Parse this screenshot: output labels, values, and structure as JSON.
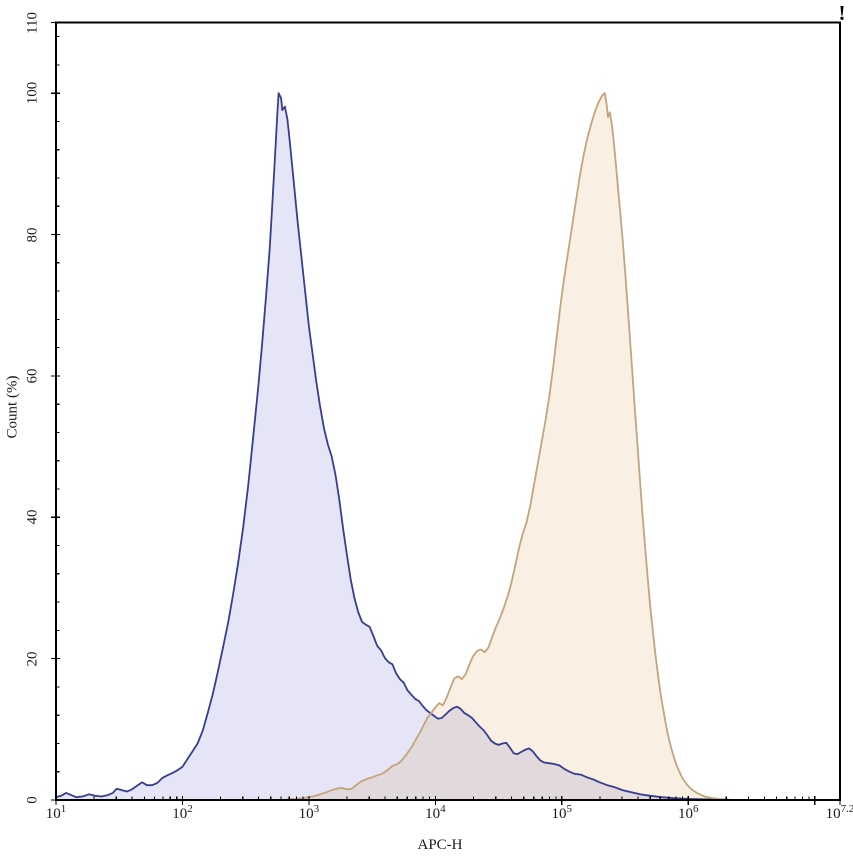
{
  "panel": {
    "background_color": "#ffffff",
    "frame_color": "#000000",
    "text_color": "#1a1a1a",
    "warning_glyph": "!"
  },
  "chart_data": {
    "type": "area",
    "subtype": "flow-cytometry-overlay-histogram",
    "title": "",
    "xlabel": "APC-H",
    "ylabel": "Count (%)",
    "grid": false,
    "legend": "none",
    "x_axis": {
      "scale": "log10",
      "range_log": [
        1.0,
        7.2
      ],
      "tick_labels": [
        {
          "base": "10",
          "exp": "1",
          "log": 1.0
        },
        {
          "base": "10",
          "exp": "2",
          "log": 2.0
        },
        {
          "base": "10",
          "exp": "3",
          "log": 3.0
        },
        {
          "base": "10",
          "exp": "4",
          "log": 4.0
        },
        {
          "base": "10",
          "exp": "5",
          "log": 5.0
        },
        {
          "base": "10",
          "exp": "6",
          "log": 6.0
        },
        {
          "base": "10",
          "exp": "7.2",
          "log": 7.2
        }
      ],
      "unlabeled_major_ticks_log": [
        7.0
      ],
      "minor_ticks": "log-decades-2-9"
    },
    "y_axis": {
      "range": [
        0,
        110
      ],
      "tick_values": [
        0,
        20,
        40,
        60,
        80,
        100,
        110
      ],
      "minor_tick_step": 4
    },
    "series": [
      {
        "id": "blue-population",
        "peak_log_x": 2.76,
        "peak_pct": 100,
        "stroke": "#373d91",
        "fill": "rgba(60,60,195,0.135)",
        "points": [
          [
            1.0,
            0.4
          ],
          [
            1.04,
            0.6
          ],
          [
            1.08,
            1.0
          ],
          [
            1.12,
            0.7
          ],
          [
            1.16,
            0.4
          ],
          [
            1.21,
            0.5
          ],
          [
            1.26,
            0.8
          ],
          [
            1.31,
            0.6
          ],
          [
            1.36,
            0.5
          ],
          [
            1.41,
            0.7
          ],
          [
            1.45,
            1.0
          ],
          [
            1.48,
            1.6
          ],
          [
            1.52,
            1.4
          ],
          [
            1.56,
            1.2
          ],
          [
            1.6,
            1.5
          ],
          [
            1.64,
            2.0
          ],
          [
            1.68,
            2.5
          ],
          [
            1.72,
            2.1
          ],
          [
            1.76,
            2.1
          ],
          [
            1.8,
            2.4
          ],
          [
            1.84,
            3.1
          ],
          [
            1.88,
            3.5
          ],
          [
            1.92,
            3.8
          ],
          [
            1.96,
            4.2
          ],
          [
            2.0,
            4.7
          ],
          [
            2.04,
            5.8
          ],
          [
            2.08,
            6.9
          ],
          [
            2.12,
            8.0
          ],
          [
            2.16,
            9.8
          ],
          [
            2.2,
            12.3
          ],
          [
            2.24,
            15.0
          ],
          [
            2.28,
            18.2
          ],
          [
            2.32,
            21.5
          ],
          [
            2.36,
            25.0
          ],
          [
            2.4,
            29.0
          ],
          [
            2.44,
            33.5
          ],
          [
            2.48,
            38.5
          ],
          [
            2.52,
            44.5
          ],
          [
            2.56,
            51.5
          ],
          [
            2.6,
            58.5
          ],
          [
            2.63,
            64.5
          ],
          [
            2.66,
            71.0
          ],
          [
            2.69,
            78.0
          ],
          [
            2.71,
            84.0
          ],
          [
            2.73,
            90.5
          ],
          [
            2.75,
            97.0
          ],
          [
            2.76,
            100.0
          ],
          [
            2.78,
            99.3
          ],
          [
            2.79,
            97.6
          ],
          [
            2.81,
            98.1
          ],
          [
            2.83,
            96.3
          ],
          [
            2.85,
            93.0
          ],
          [
            2.88,
            87.5
          ],
          [
            2.91,
            82.0
          ],
          [
            2.94,
            77.0
          ],
          [
            2.97,
            72.0
          ],
          [
            3.0,
            67.0
          ],
          [
            3.03,
            63.0
          ],
          [
            3.06,
            59.0
          ],
          [
            3.09,
            55.5
          ],
          [
            3.12,
            52.5
          ],
          [
            3.15,
            50.3
          ],
          [
            3.18,
            48.6
          ],
          [
            3.21,
            46.0
          ],
          [
            3.24,
            42.5
          ],
          [
            3.27,
            38.5
          ],
          [
            3.3,
            34.8
          ],
          [
            3.33,
            31.3
          ],
          [
            3.36,
            28.6
          ],
          [
            3.39,
            26.6
          ],
          [
            3.42,
            25.2
          ],
          [
            3.45,
            24.8
          ],
          [
            3.48,
            24.5
          ],
          [
            3.51,
            23.2
          ],
          [
            3.54,
            21.8
          ],
          [
            3.57,
            21.2
          ],
          [
            3.6,
            20.1
          ],
          [
            3.63,
            19.5
          ],
          [
            3.66,
            19.2
          ],
          [
            3.69,
            17.9
          ],
          [
            3.72,
            17.1
          ],
          [
            3.75,
            16.6
          ],
          [
            3.78,
            15.5
          ],
          [
            3.81,
            14.9
          ],
          [
            3.84,
            14.3
          ],
          [
            3.87,
            14.0
          ],
          [
            3.9,
            13.3
          ],
          [
            3.93,
            12.7
          ],
          [
            3.96,
            12.3
          ],
          [
            3.99,
            11.9
          ],
          [
            4.02,
            11.5
          ],
          [
            4.05,
            11.6
          ],
          [
            4.08,
            12.1
          ],
          [
            4.11,
            12.6
          ],
          [
            4.14,
            13.0
          ],
          [
            4.17,
            13.2
          ],
          [
            4.2,
            12.9
          ],
          [
            4.23,
            12.3
          ],
          [
            4.26,
            12.0
          ],
          [
            4.29,
            11.6
          ],
          [
            4.32,
            11.0
          ],
          [
            4.35,
            10.4
          ],
          [
            4.38,
            9.9
          ],
          [
            4.41,
            9.2
          ],
          [
            4.44,
            8.4
          ],
          [
            4.47,
            8.0
          ],
          [
            4.5,
            7.8
          ],
          [
            4.53,
            8.0
          ],
          [
            4.56,
            8.1
          ],
          [
            4.59,
            7.4
          ],
          [
            4.62,
            6.6
          ],
          [
            4.65,
            6.5
          ],
          [
            4.68,
            6.8
          ],
          [
            4.71,
            7.1
          ],
          [
            4.74,
            7.3
          ],
          [
            4.77,
            6.9
          ],
          [
            4.8,
            6.2
          ],
          [
            4.83,
            5.6
          ],
          [
            4.86,
            5.3
          ],
          [
            4.9,
            5.2
          ],
          [
            4.94,
            5.1
          ],
          [
            4.98,
            4.9
          ],
          [
            5.02,
            4.4
          ],
          [
            5.06,
            4.0
          ],
          [
            5.1,
            3.7
          ],
          [
            5.15,
            3.6
          ],
          [
            5.2,
            3.2
          ],
          [
            5.25,
            2.9
          ],
          [
            5.3,
            2.5
          ],
          [
            5.36,
            2.1
          ],
          [
            5.42,
            1.8
          ],
          [
            5.48,
            1.4
          ],
          [
            5.55,
            1.1
          ],
          [
            5.62,
            0.8
          ],
          [
            5.7,
            0.6
          ],
          [
            5.79,
            0.4
          ],
          [
            5.89,
            0.25
          ],
          [
            6.0,
            0.15
          ],
          [
            6.12,
            0.1
          ],
          [
            6.25,
            0.05
          ],
          [
            6.38,
            0.0
          ]
        ]
      },
      {
        "id": "orange-population",
        "peak_log_x": 5.34,
        "peak_pct": 100,
        "stroke": "#c3a47b",
        "fill": "rgba(215,150,55,0.14)",
        "points": [
          [
            2.82,
            0.05
          ],
          [
            2.9,
            0.15
          ],
          [
            2.97,
            0.3
          ],
          [
            3.03,
            0.5
          ],
          [
            3.09,
            0.8
          ],
          [
            3.14,
            1.1
          ],
          [
            3.18,
            1.4
          ],
          [
            3.22,
            1.6
          ],
          [
            3.26,
            1.7
          ],
          [
            3.3,
            1.5
          ],
          [
            3.34,
            1.6
          ],
          [
            3.38,
            2.2
          ],
          [
            3.42,
            2.7
          ],
          [
            3.46,
            3.0
          ],
          [
            3.5,
            3.2
          ],
          [
            3.54,
            3.5
          ],
          [
            3.58,
            3.7
          ],
          [
            3.62,
            4.2
          ],
          [
            3.66,
            4.8
          ],
          [
            3.7,
            5.1
          ],
          [
            3.73,
            5.5
          ],
          [
            3.76,
            6.2
          ],
          [
            3.79,
            6.9
          ],
          [
            3.82,
            7.7
          ],
          [
            3.85,
            8.7
          ],
          [
            3.88,
            9.6
          ],
          [
            3.91,
            10.7
          ],
          [
            3.94,
            11.7
          ],
          [
            3.97,
            12.4
          ],
          [
            4.0,
            13.1
          ],
          [
            4.03,
            13.7
          ],
          [
            4.06,
            13.4
          ],
          [
            4.09,
            14.5
          ],
          [
            4.12,
            15.9
          ],
          [
            4.15,
            17.2
          ],
          [
            4.18,
            17.5
          ],
          [
            4.21,
            17.1
          ],
          [
            4.24,
            17.8
          ],
          [
            4.27,
            19.2
          ],
          [
            4.3,
            20.4
          ],
          [
            4.33,
            21.1
          ],
          [
            4.36,
            21.3
          ],
          [
            4.39,
            20.9
          ],
          [
            4.42,
            21.6
          ],
          [
            4.45,
            23.1
          ],
          [
            4.48,
            24.5
          ],
          [
            4.51,
            25.7
          ],
          [
            4.54,
            27.1
          ],
          [
            4.57,
            28.7
          ],
          [
            4.6,
            30.6
          ],
          [
            4.63,
            33.0
          ],
          [
            4.66,
            35.5
          ],
          [
            4.69,
            37.6
          ],
          [
            4.72,
            39.2
          ],
          [
            4.75,
            41.6
          ],
          [
            4.78,
            44.6
          ],
          [
            4.81,
            47.6
          ],
          [
            4.84,
            50.6
          ],
          [
            4.87,
            53.6
          ],
          [
            4.9,
            57.0
          ],
          [
            4.93,
            61.0
          ],
          [
            4.96,
            65.5
          ],
          [
            4.99,
            70.0
          ],
          [
            5.02,
            74.0
          ],
          [
            5.05,
            77.5
          ],
          [
            5.08,
            81.0
          ],
          [
            5.11,
            84.5
          ],
          [
            5.14,
            88.0
          ],
          [
            5.17,
            91.0
          ],
          [
            5.2,
            93.5
          ],
          [
            5.23,
            95.5
          ],
          [
            5.26,
            97.3
          ],
          [
            5.29,
            98.7
          ],
          [
            5.32,
            99.7
          ],
          [
            5.34,
            100.0
          ],
          [
            5.355,
            98.3
          ],
          [
            5.365,
            96.6
          ],
          [
            5.38,
            97.3
          ],
          [
            5.4,
            95.0
          ],
          [
            5.42,
            91.5
          ],
          [
            5.44,
            87.5
          ],
          [
            5.46,
            83.5
          ],
          [
            5.48,
            79.5
          ],
          [
            5.5,
            75.0
          ],
          [
            5.52,
            70.0
          ],
          [
            5.54,
            65.0
          ],
          [
            5.56,
            60.0
          ],
          [
            5.58,
            54.8
          ],
          [
            5.6,
            49.8
          ],
          [
            5.62,
            44.8
          ],
          [
            5.64,
            40.0
          ],
          [
            5.66,
            35.5
          ],
          [
            5.68,
            31.2
          ],
          [
            5.7,
            27.3
          ],
          [
            5.72,
            23.8
          ],
          [
            5.74,
            20.6
          ],
          [
            5.76,
            17.8
          ],
          [
            5.78,
            15.2
          ],
          [
            5.8,
            13.0
          ],
          [
            5.82,
            11.0
          ],
          [
            5.84,
            9.2
          ],
          [
            5.86,
            7.7
          ],
          [
            5.88,
            6.4
          ],
          [
            5.9,
            5.3
          ],
          [
            5.92,
            4.4
          ],
          [
            5.94,
            3.6
          ],
          [
            5.96,
            2.9
          ],
          [
            5.99,
            2.2
          ],
          [
            6.02,
            1.6
          ],
          [
            6.05,
            1.2
          ],
          [
            6.09,
            0.8
          ],
          [
            6.13,
            0.5
          ],
          [
            6.18,
            0.3
          ],
          [
            6.24,
            0.15
          ],
          [
            6.31,
            0.05
          ],
          [
            6.4,
            0.0
          ]
        ]
      }
    ]
  }
}
